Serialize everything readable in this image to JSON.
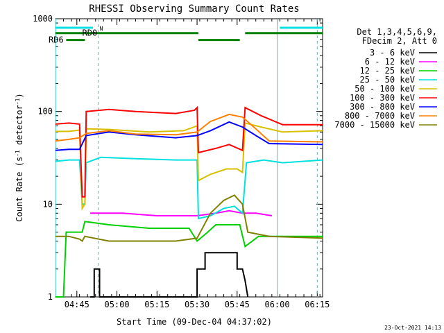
{
  "chart_data": {
    "type": "line",
    "title": "RHESSI Observing Summary Count Rates",
    "xlabel": "Start Time (09-Dec-04 04:37:02)",
    "ylabel_main": "Count Rate (s",
    "ylabel_sup1": "-1",
    "ylabel_mid": " detector",
    "ylabel_sup2": "-1",
    "ylabel_end": ")",
    "yscale": "log",
    "ylim": [
      1,
      1000
    ],
    "xlim_min": [
      0,
      100
    ],
    "x_ticks": [
      {
        "t": 8,
        "label": "04:45"
      },
      {
        "t": 23,
        "label": "05:00"
      },
      {
        "t": 38,
        "label": "05:15"
      },
      {
        "t": 53,
        "label": "05:30"
      },
      {
        "t": 68,
        "label": "05:45"
      },
      {
        "t": 83,
        "label": "06:00"
      },
      {
        "t": 98,
        "label": "06:15"
      }
    ],
    "y_ticks": [
      {
        "v": 1,
        "label": "1"
      },
      {
        "v": 10,
        "label": "10"
      },
      {
        "v": 100,
        "label": "100"
      },
      {
        "v": 1000,
        "label": "1000"
      }
    ],
    "legend_header": [
      "Det 1,3,4,5,6,9,",
      "FDecim 2, Att 0"
    ],
    "footer_date": "23-Oct-2021 14:13",
    "flags": [
      {
        "label": "N",
        "color": "#00e0e0",
        "segments": [
          [
            0,
            14
          ],
          [
            84,
            100
          ]
        ],
        "level": 800
      },
      {
        "label": "RD0",
        "color": "#008000",
        "segments": [
          [
            0,
            53.5
          ],
          [
            71,
            100
          ]
        ],
        "level": 700
      },
      {
        "label": "RD6",
        "color": "#008000",
        "segments": [
          [
            4,
            11
          ],
          [
            53.5,
            69
          ]
        ],
        "level": 590
      }
    ],
    "vlines_solid": [
      0,
      83
    ],
    "vlines_dashed": [
      16,
      98
    ],
    "vlines_solid_color": "#00e0e0",
    "series": [
      {
        "name": "3 - 6 keV",
        "color": "#000000",
        "pts": [
          [
            13,
            1
          ],
          [
            14.5,
            1
          ],
          [
            14.5,
            2
          ],
          [
            16.5,
            2
          ],
          [
            16.5,
            1
          ],
          [
            53,
            1
          ],
          [
            53,
            2
          ],
          [
            56,
            2
          ],
          [
            56,
            3
          ],
          [
            68,
            3
          ],
          [
            68,
            2
          ],
          [
            70,
            2
          ],
          [
            71,
            1.5
          ],
          [
            72,
            1
          ]
        ]
      },
      {
        "name": "6 - 12 keV",
        "color": "#ff00ff",
        "pts": [
          [
            13,
            8
          ],
          [
            25,
            8
          ],
          [
            38,
            7.5
          ],
          [
            50,
            7.5
          ],
          [
            53,
            7.5
          ],
          [
            60,
            8
          ],
          [
            65,
            8.5
          ],
          [
            70,
            8
          ],
          [
            75,
            8
          ],
          [
            81,
            7.5
          ]
        ]
      },
      {
        "name": "12 - 25 keV",
        "color": "#00d000",
        "pts": [
          [
            0,
            1
          ],
          [
            3,
            1
          ],
          [
            4,
            5
          ],
          [
            10,
            5
          ],
          [
            11,
            6.5
          ],
          [
            20,
            6
          ],
          [
            35,
            5.5
          ],
          [
            50,
            5.5
          ],
          [
            53,
            4
          ],
          [
            57,
            5
          ],
          [
            60,
            6
          ],
          [
            66,
            6
          ],
          [
            69,
            6
          ],
          [
            71,
            3.5
          ],
          [
            76,
            4.5
          ],
          [
            84,
            4.5
          ],
          [
            90,
            4.5
          ],
          [
            100,
            4.5
          ]
        ]
      },
      {
        "name": "25 - 50 keV",
        "color": "#00e0e0",
        "pts": [
          [
            0,
            29
          ],
          [
            5,
            30
          ],
          [
            9,
            30
          ],
          [
            10,
            10
          ],
          [
            11,
            10
          ],
          [
            11.5,
            28
          ],
          [
            17,
            32
          ],
          [
            30,
            31
          ],
          [
            45,
            30
          ],
          [
            53,
            30
          ],
          [
            53.5,
            7
          ],
          [
            58,
            7.5
          ],
          [
            63,
            9
          ],
          [
            67,
            9.5
          ],
          [
            70,
            8
          ],
          [
            71.5,
            28
          ],
          [
            78,
            30
          ],
          [
            85,
            28
          ],
          [
            100,
            30
          ]
        ]
      },
      {
        "name": "50 - 100 keV",
        "color": "#d8c000",
        "pts": [
          [
            0,
            61
          ],
          [
            5,
            61
          ],
          [
            9,
            63
          ],
          [
            10,
            9
          ],
          [
            11,
            10
          ],
          [
            11.5,
            65
          ],
          [
            20,
            64
          ],
          [
            35,
            60
          ],
          [
            48,
            62
          ],
          [
            53,
            70
          ],
          [
            53.5,
            18
          ],
          [
            58,
            21
          ],
          [
            64,
            24
          ],
          [
            68,
            24
          ],
          [
            70,
            22
          ],
          [
            71,
            75
          ],
          [
            77,
            68
          ],
          [
            85,
            60
          ],
          [
            100,
            62
          ]
        ]
      },
      {
        "name": "100 - 300 keV",
        "color": "#ff0000",
        "pts": [
          [
            0,
            73
          ],
          [
            5,
            75
          ],
          [
            9,
            73
          ],
          [
            10,
            12
          ],
          [
            11,
            12
          ],
          [
            11.5,
            100
          ],
          [
            20,
            105
          ],
          [
            30,
            100
          ],
          [
            45,
            95
          ],
          [
            52,
            103
          ],
          [
            53,
            110
          ],
          [
            53.5,
            36
          ],
          [
            60,
            40
          ],
          [
            65,
            44
          ],
          [
            70,
            38
          ],
          [
            71,
            110
          ],
          [
            77,
            90
          ],
          [
            85,
            72
          ],
          [
            100,
            72
          ]
        ]
      },
      {
        "name": "300 - 800 keV",
        "color": "#0000ff",
        "pts": [
          [
            0,
            38
          ],
          [
            5,
            39
          ],
          [
            9,
            39
          ],
          [
            11.5,
            55
          ],
          [
            20,
            60
          ],
          [
            30,
            56
          ],
          [
            45,
            52
          ],
          [
            53,
            55
          ],
          [
            58,
            62
          ],
          [
            65,
            77
          ],
          [
            70,
            68
          ],
          [
            75,
            55
          ],
          [
            80,
            45
          ],
          [
            100,
            44
          ]
        ]
      },
      {
        "name": "800 - 7000 keV",
        "color": "#ff8000",
        "pts": [
          [
            0,
            48
          ],
          [
            5,
            50
          ],
          [
            9,
            52
          ],
          [
            11.5,
            58
          ],
          [
            20,
            62
          ],
          [
            30,
            57
          ],
          [
            45,
            56
          ],
          [
            53,
            60
          ],
          [
            58,
            78
          ],
          [
            65,
            93
          ],
          [
            70,
            87
          ],
          [
            75,
            65
          ],
          [
            80,
            48
          ],
          [
            100,
            47
          ]
        ]
      },
      {
        "name": "7000 - 15000 keV",
        "color": "#808000",
        "pts": [
          [
            0,
            4.5
          ],
          [
            5,
            4.5
          ],
          [
            9,
            4.2
          ],
          [
            10,
            4
          ],
          [
            11,
            4.5
          ],
          [
            20,
            4
          ],
          [
            30,
            4
          ],
          [
            45,
            4
          ],
          [
            53,
            4.3
          ],
          [
            58,
            8
          ],
          [
            63,
            11
          ],
          [
            67,
            12.5
          ],
          [
            70,
            10
          ],
          [
            72,
            5
          ],
          [
            80,
            4.5
          ],
          [
            100,
            4.3
          ]
        ]
      }
    ]
  }
}
